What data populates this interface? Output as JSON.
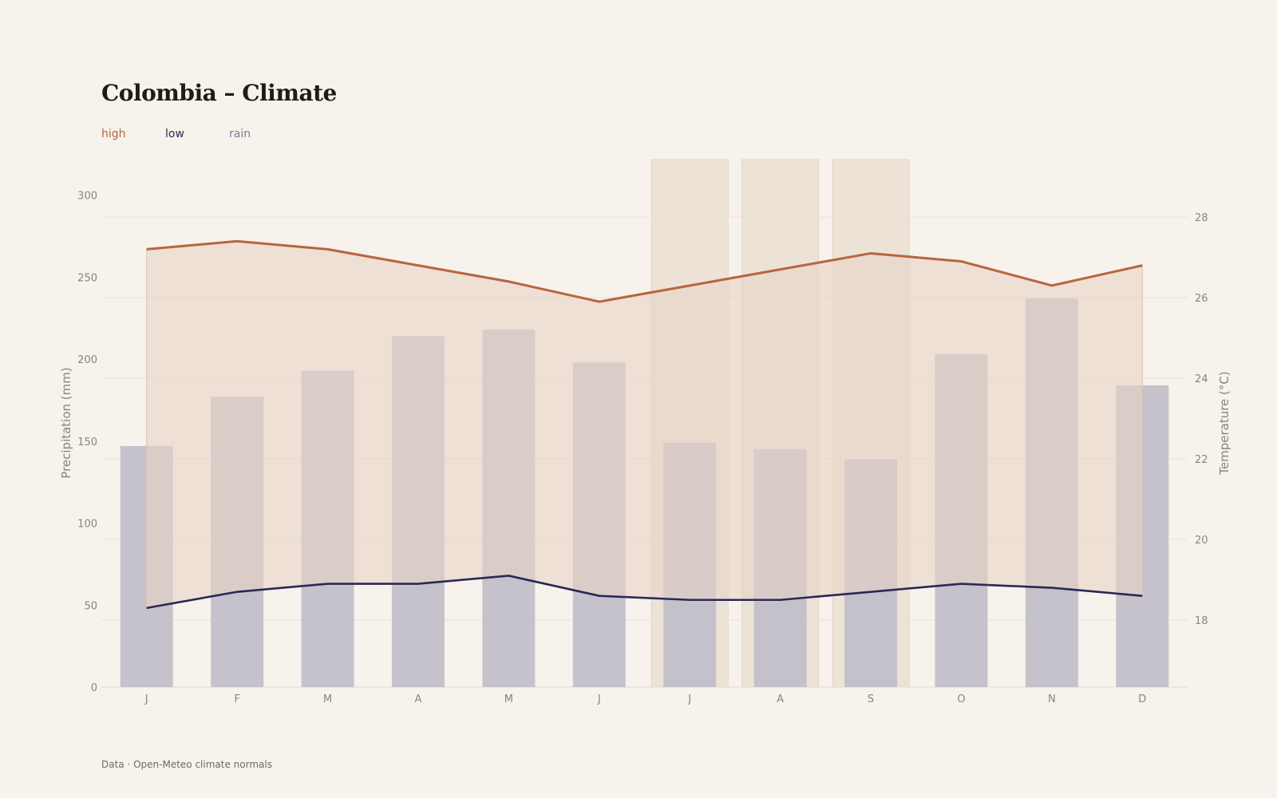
{
  "title": "Colombia – Climate",
  "source": "Data · Open-Meteo climate normals",
  "colors": {
    "high": "#b9643f",
    "low": "#2a2857",
    "rain": "#7e7a96",
    "band_fill": "#e8d3c6",
    "bar_fill": "#c2bfc9",
    "highlight": "#ece3d6"
  },
  "legend": [
    {
      "key": "high",
      "label": "high"
    },
    {
      "key": "low",
      "label": "low"
    },
    {
      "key": "rain",
      "label": "rain"
    }
  ],
  "chart_data": {
    "type": "bar",
    "title": "Colombia – Climate",
    "categories": [
      "J",
      "F",
      "M",
      "A",
      "M",
      "J",
      "J",
      "A",
      "S",
      "O",
      "N",
      "D"
    ],
    "series": [
      {
        "name": "rain",
        "axis": "left",
        "kind": "bar",
        "values": [
          147,
          177,
          193,
          214,
          218,
          198,
          149,
          145,
          139,
          203,
          237,
          184
        ]
      },
      {
        "name": "high",
        "axis": "right",
        "kind": "line",
        "values": [
          27.2,
          27.4,
          27.2,
          26.8,
          26.4,
          25.9,
          26.3,
          26.7,
          27.1,
          26.9,
          26.3,
          26.8
        ]
      },
      {
        "name": "low",
        "axis": "right",
        "kind": "line",
        "values": [
          18.3,
          18.7,
          18.9,
          18.9,
          19.1,
          18.6,
          18.5,
          18.5,
          18.7,
          18.9,
          18.8,
          18.6
        ]
      }
    ],
    "highlighted_months": [
      6,
      7,
      8
    ],
    "ylabel_left": "Precipitation (mm)",
    "ylabel_right": "Temperature (°C)",
    "ylim_left": [
      0,
      300
    ],
    "yticks_left": [
      0,
      50,
      100,
      150,
      200,
      250,
      300
    ],
    "ylim_right": [
      16.3,
      28.9
    ],
    "yticks_right": [
      18,
      20,
      22,
      24,
      26,
      28
    ],
    "grid": true
  }
}
